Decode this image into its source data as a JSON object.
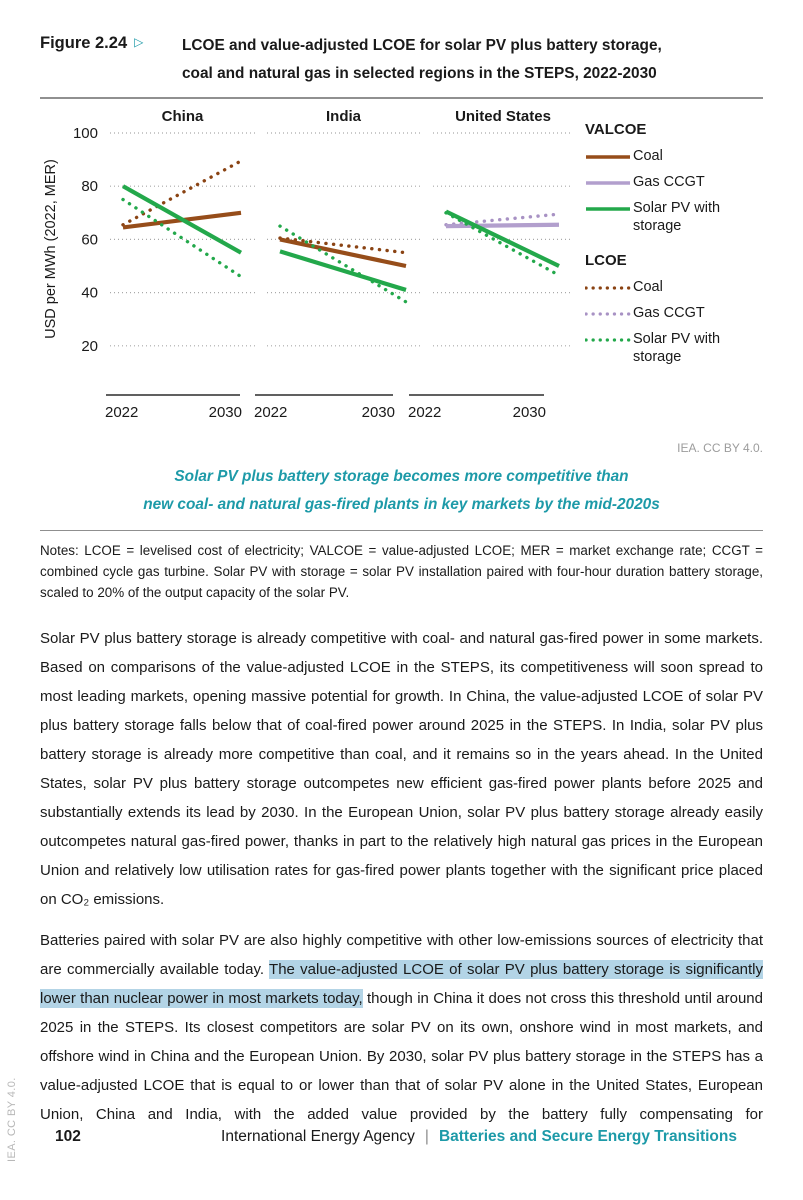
{
  "figure": {
    "label": "Figure 2.24",
    "arrow": "▷",
    "title_line1": "LCOE and value-adjusted LCOE for solar PV plus battery storage,",
    "title_line2": "coal and natural gas in selected regions in the STEPS, 2022-2030",
    "credit": "IEA. CC BY 4.0.",
    "caption_line1": "Solar PV plus battery storage becomes more competitive than",
    "caption_line2": "new coal- and natural gas-fired plants in key markets by the mid-2020s",
    "notes": "Notes: LCOE = levelised cost of electricity; VALCOE = value-adjusted LCOE; MER = market exchange rate; CCGT = combined cycle gas turbine. Solar PV with storage = solar PV installation paired with four-hour duration battery storage, scaled to 20% of the output capacity of the solar PV."
  },
  "colors": {
    "teal": "#1d9aa8",
    "coal": "#964d1a",
    "coal_dotted": "#8a4313",
    "gas": "#b29fcd",
    "gas_dotted": "#a892c4",
    "solar": "#23a84b",
    "grid": "#a9a9a9",
    "highlight": "#b3d4e6"
  },
  "chart_data": {
    "type": "line",
    "title": "",
    "ylabel": "USD per MWh (2022, MER)",
    "xlabel": "",
    "y_ticks": [
      100,
      80,
      60,
      40,
      20
    ],
    "ylim": [
      0,
      105
    ],
    "x": [
      2022,
      2030
    ],
    "x_ticks": [
      "2022",
      "2030"
    ],
    "grid": "horizontal dotted",
    "panels": [
      {
        "title": "China",
        "series": [
          {
            "name": "LCOE Coal",
            "color_key": "coal_dotted",
            "style": "dotted",
            "values": [
              65.5,
              89.5
            ]
          },
          {
            "name": "VALCOE Coal",
            "color_key": "coal",
            "style": "solid",
            "values": [
              64.5,
              70
            ]
          },
          {
            "name": "LCOE Solar PV with storage",
            "color_key": "solar",
            "style": "dotted",
            "values": [
              75,
              46
            ]
          },
          {
            "name": "VALCOE Solar PV with storage",
            "color_key": "solar",
            "style": "solid",
            "values": [
              80,
              55
            ]
          }
        ]
      },
      {
        "title": "India",
        "series": [
          {
            "name": "LCOE Coal",
            "color_key": "coal_dotted",
            "style": "dotted",
            "values": [
              60.5,
              55
            ]
          },
          {
            "name": "VALCOE Coal",
            "color_key": "coal",
            "style": "solid",
            "values": [
              60,
              50
            ]
          },
          {
            "name": "LCOE Solar PV with storage",
            "color_key": "solar",
            "style": "dotted",
            "values": [
              65,
              36.5
            ]
          },
          {
            "name": "VALCOE Solar PV with storage",
            "color_key": "solar",
            "style": "solid",
            "values": [
              55.5,
              41
            ]
          }
        ]
      },
      {
        "title": "United States",
        "series": [
          {
            "name": "LCOE Gas CCGT",
            "color_key": "gas_dotted",
            "style": "dotted",
            "values": [
              65.5,
              69.5
            ]
          },
          {
            "name": "VALCOE Gas CCGT",
            "color_key": "gas",
            "style": "solid",
            "values": [
              65,
              65.5
            ]
          },
          {
            "name": "LCOE Solar PV with storage",
            "color_key": "solar",
            "style": "dotted",
            "values": [
              70,
              46.5
            ]
          },
          {
            "name": "VALCOE Solar PV with storage",
            "color_key": "solar",
            "style": "solid",
            "values": [
              70.5,
              50
            ]
          }
        ]
      }
    ],
    "legend": {
      "position": "right",
      "groups": [
        {
          "header": "VALCOE",
          "items": [
            {
              "label": "Coal",
              "style": "solid",
              "color_key": "coal"
            },
            {
              "label": "Gas CCGT",
              "style": "solid",
              "color_key": "gas"
            },
            {
              "label": "Solar PV with storage",
              "style": "solid",
              "color_key": "solar"
            }
          ]
        },
        {
          "header": "LCOE",
          "items": [
            {
              "label": "Coal",
              "style": "dotted",
              "color_key": "coal_dotted"
            },
            {
              "label": "Gas CCGT",
              "style": "dotted",
              "color_key": "gas_dotted"
            },
            {
              "label": "Solar PV with storage",
              "style": "dotted",
              "color_key": "solar"
            }
          ]
        }
      ]
    }
  },
  "body": {
    "paragraph1": "Solar PV plus battery storage is already competitive with coal- and natural gas-fired power in some markets. Based on comparisons of the value-adjusted LCOE in the STEPS, its competitiveness will soon spread to most leading markets, opening massive potential for growth. In China, the value-adjusted LCOE of solar PV plus battery storage falls below that of coal-fired power around 2025 in the STEPS. In India, solar PV plus battery storage is already more competitive than coal, and it remains so in the years ahead. In the United States, solar PV plus battery storage outcompetes new efficient gas-fired power plants before 2025 and substantially extends its lead by 2030. In the European Union, solar PV plus battery storage already easily outcompetes natural gas-fired power, thanks in part to the relatively high natural gas prices in the European Union and relatively low utilisation rates for gas-fired power plants together with the significant price placed on CO₂ emissions.",
    "paragraph2_pre": "Batteries paired with solar PV are also highly competitive with other low-emissions sources of electricity that are commercially available today. ",
    "paragraph2_highlight": "The value-adjusted LCOE of solar PV plus battery storage is significantly lower than nuclear power in most markets today,",
    "paragraph2_post": " though in China it does not cross this threshold until around 2025 in the STEPS. Its closest competitors are solar PV on its own, onshore wind in most markets, and offshore wind in China and the European Union. By 2030, solar PV plus battery storage in the STEPS has a value-adjusted LCOE that is equal to or lower than that of solar PV alone in the United States, European Union, China and India, with the added value provided by the battery fully compensating for"
  },
  "page": {
    "side_note": "IEA. CC BY 4.0.",
    "footer": {
      "page_number": "102",
      "publisher": "International Energy Agency",
      "separator": "|",
      "report_title": "Batteries and Secure Energy Transitions"
    }
  }
}
